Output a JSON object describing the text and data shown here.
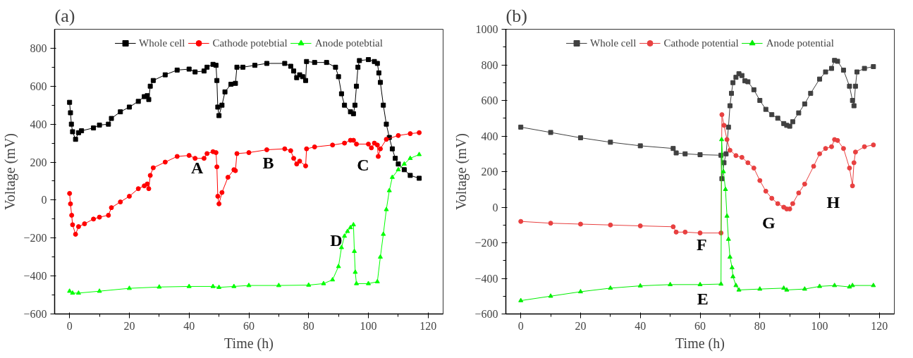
{
  "chart_data": [
    {
      "type": "line",
      "title": "(a)",
      "xlabel": "Time (h)",
      "ylabel": "Voltage (mV)",
      "xlim": [
        -5,
        125
      ],
      "ylim": [
        -600,
        900
      ],
      "xticks": [
        0,
        20,
        40,
        60,
        80,
        100,
        120
      ],
      "yticks": [
        -600,
        -400,
        -200,
        0,
        200,
        400,
        600,
        800
      ],
      "legend": "top",
      "grid": false,
      "line_style": "solid",
      "series": [
        {
          "name": "Whole cell",
          "color": "#000000",
          "marker": "square",
          "x": [
            0,
            0.3,
            0.6,
            1,
            2,
            3,
            4,
            8,
            10,
            13,
            14,
            17,
            20,
            23,
            25,
            26,
            26.5,
            27,
            28,
            32,
            36,
            40,
            42,
            45,
            46,
            48,
            49,
            49.3,
            49.6,
            50,
            51,
            52,
            54,
            55.5,
            56,
            58,
            62,
            66,
            72,
            74,
            75,
            76,
            77,
            78,
            79,
            79.3,
            82,
            86,
            89,
            90,
            91,
            92,
            94,
            95,
            95.5,
            96,
            96.5,
            97,
            100,
            102,
            103,
            103.5,
            104,
            105,
            106,
            107,
            108,
            109,
            110,
            112,
            114,
            117
          ],
          "values": [
            515,
            460,
            400,
            360,
            320,
            355,
            365,
            380,
            395,
            400,
            430,
            465,
            490,
            520,
            545,
            550,
            530,
            600,
            630,
            660,
            685,
            690,
            675,
            680,
            700,
            715,
            710,
            630,
            490,
            445,
            500,
            570,
            610,
            615,
            700,
            700,
            710,
            720,
            720,
            705,
            680,
            645,
            660,
            650,
            630,
            730,
            725,
            725,
            700,
            650,
            560,
            500,
            465,
            455,
            500,
            600,
            700,
            735,
            740,
            730,
            720,
            670,
            620,
            500,
            400,
            330,
            270,
            220,
            190,
            160,
            130,
            115
          ]
        },
        {
          "name": "Cathode potebtial",
          "color": "#ff0000",
          "marker": "circle",
          "x": [
            0,
            0.3,
            0.7,
            1,
            2,
            3,
            5,
            8,
            10,
            13,
            14,
            17,
            20,
            23,
            25,
            26,
            26.5,
            27,
            28,
            32,
            36,
            40,
            42,
            45,
            46,
            48,
            49,
            49.3,
            49.6,
            50,
            51,
            53,
            55,
            55.5,
            56,
            60,
            66,
            72,
            74,
            75,
            76,
            77,
            79,
            79.3,
            82,
            88,
            92,
            94,
            95,
            96,
            100,
            101,
            102,
            103,
            103.3,
            104,
            106,
            110,
            114,
            117
          ],
          "values": [
            35,
            -20,
            -80,
            -130,
            -180,
            -140,
            -125,
            -100,
            -90,
            -80,
            -40,
            -10,
            20,
            60,
            75,
            85,
            60,
            130,
            170,
            200,
            230,
            235,
            220,
            220,
            245,
            255,
            250,
            175,
            20,
            -20,
            40,
            120,
            160,
            155,
            245,
            250,
            265,
            270,
            260,
            220,
            190,
            205,
            180,
            270,
            280,
            290,
            300,
            315,
            315,
            295,
            295,
            275,
            300,
            290,
            230,
            270,
            320,
            340,
            350,
            355
          ]
        },
        {
          "name": "Anode potebtial",
          "color": "#00ff00",
          "marker": "triangle",
          "x": [
            0,
            1,
            3,
            10,
            20,
            30,
            40,
            48,
            50,
            55,
            60,
            70,
            80,
            85,
            88,
            90,
            91,
            92,
            93,
            94,
            95,
            95.3,
            95.6,
            96,
            100,
            103,
            104,
            105,
            106,
            107,
            108,
            110,
            112,
            114,
            117
          ],
          "values": [
            -480,
            -490,
            -490,
            -480,
            -465,
            -458,
            -455,
            -455,
            -460,
            -455,
            -450,
            -450,
            -448,
            -440,
            -420,
            -350,
            -250,
            -190,
            -165,
            -145,
            -130,
            -270,
            -380,
            -440,
            -440,
            -430,
            -300,
            -180,
            -50,
            50,
            120,
            160,
            190,
            220,
            240
          ]
        }
      ],
      "annotations": [
        {
          "text": "A",
          "x": 49,
          "y": 245
        },
        {
          "text": "B",
          "x": 72.6,
          "y": 272
        },
        {
          "text": "C",
          "x": 104.5,
          "y": 260
        },
        {
          "text": "D",
          "x": 95.5,
          "y": -139
        }
      ]
    },
    {
      "type": "line",
      "title": "(b)",
      "xlabel": "Time (h)",
      "ylabel": "Voltage (mV)",
      "xlim": [
        -5,
        125
      ],
      "ylim": [
        -600,
        1000
      ],
      "xticks": [
        0,
        20,
        40,
        60,
        80,
        100,
        120
      ],
      "yticks": [
        -600,
        -400,
        -200,
        0,
        200,
        400,
        600,
        800,
        1000
      ],
      "legend": "top",
      "grid": false,
      "line_style": "solid",
      "series": [
        {
          "name": "Whole cell",
          "color": "#404040",
          "marker": "square",
          "x": [
            0,
            10,
            20,
            30,
            40,
            51,
            52,
            55,
            60,
            67,
            67.3,
            68,
            68.7,
            69.5,
            70,
            70.5,
            71,
            72,
            73,
            74,
            75,
            76,
            78,
            80,
            82,
            84,
            86,
            88,
            89,
            90,
            91,
            93,
            95,
            97,
            100,
            102,
            104,
            105,
            106,
            108,
            110,
            111,
            111.5,
            112,
            112.5,
            115,
            118
          ],
          "values": [
            450,
            420,
            390,
            365,
            345,
            330,
            305,
            300,
            295,
            292,
            160,
            250,
            300,
            450,
            570,
            640,
            700,
            730,
            750,
            740,
            710,
            705,
            660,
            600,
            550,
            520,
            500,
            470,
            460,
            455,
            480,
            530,
            580,
            640,
            720,
            760,
            780,
            825,
            820,
            770,
            680,
            600,
            570,
            680,
            760,
            780,
            790
          ]
        },
        {
          "name": "Cathode potential",
          "color": "#e84040",
          "marker": "circle",
          "x": [
            0,
            10,
            20,
            30,
            40,
            51,
            52,
            55,
            60,
            67,
            67.3,
            68,
            69,
            70,
            72,
            74,
            76,
            78,
            80,
            82,
            84,
            86,
            88,
            89,
            90,
            91,
            93,
            95,
            98,
            100,
            102,
            104,
            105,
            106,
            108,
            110,
            111,
            111.5,
            112,
            115,
            118
          ],
          "values": [
            -80,
            -90,
            -95,
            -100,
            -105,
            -110,
            -140,
            -140,
            -145,
            -145,
            520,
            460,
            380,
            320,
            290,
            280,
            250,
            220,
            150,
            90,
            50,
            20,
            0,
            -10,
            -10,
            20,
            80,
            130,
            230,
            300,
            330,
            340,
            380,
            375,
            330,
            220,
            120,
            250,
            310,
            340,
            350
          ]
        },
        {
          "name": "Anode potential",
          "color": "#00ee00",
          "marker": "triangle",
          "x": [
            0,
            10,
            20,
            30,
            40,
            50,
            60,
            67,
            67.2,
            67.8,
            68.5,
            69,
            69.5,
            70,
            70.7,
            71,
            72,
            73,
            80,
            88,
            89,
            95,
            100,
            105,
            110,
            111,
            118
          ],
          "values": [
            -525,
            -500,
            -475,
            -455,
            -442,
            -435,
            -435,
            -432,
            380,
            200,
            100,
            -50,
            -180,
            -280,
            -340,
            -390,
            -440,
            -465,
            -460,
            -455,
            -465,
            -460,
            -445,
            -440,
            -448,
            -440,
            -440
          ]
        }
      ],
      "annotations": [
        {
          "text": "E",
          "x": 67,
          "y": -436
        },
        {
          "text": "F",
          "x": 66.5,
          "y": -130
        },
        {
          "text": "G",
          "x": 89.4,
          "y": -8
        },
        {
          "text": "H",
          "x": 111,
          "y": 107
        }
      ]
    }
  ]
}
